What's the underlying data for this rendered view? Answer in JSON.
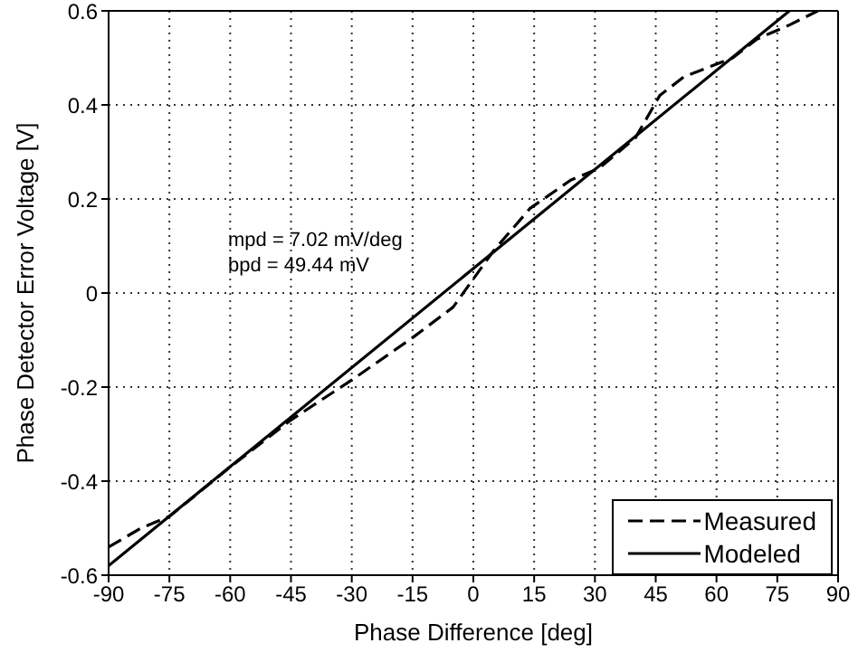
{
  "chart_data": {
    "type": "line",
    "xlabel": "Phase Difference [deg]",
    "ylabel": "Phase Detector Error Voltage [V]",
    "annotations": [
      "mpd = 7.02 mV/deg",
      "bpd = 49.44 mV"
    ],
    "xlim": [
      -90,
      90
    ],
    "xticks": [
      -90,
      -75,
      -60,
      -45,
      -30,
      -15,
      0,
      15,
      30,
      45,
      60,
      75,
      90
    ],
    "ylim": [
      -0.6,
      0.6
    ],
    "yticks": [
      -0.6,
      -0.4,
      -0.2,
      0,
      0.2,
      0.4,
      0.6
    ],
    "grid": true,
    "legend": "bottom right",
    "marker": "none",
    "series": [
      {
        "name": "Measured",
        "color": "#000000",
        "line_style": "dashed",
        "x": [
          -90,
          -82,
          -75,
          -60,
          -45,
          -30,
          -15,
          -5,
          0,
          5,
          14,
          24,
          31,
          40,
          46,
          52,
          58,
          64,
          70,
          78,
          85
        ],
        "values": [
          -0.54,
          -0.5,
          -0.475,
          -0.37,
          -0.27,
          -0.185,
          -0.095,
          -0.03,
          0.03,
          0.09,
          0.18,
          0.24,
          0.265,
          0.33,
          0.42,
          0.46,
          0.48,
          0.5,
          0.54,
          0.57,
          0.6
        ]
      },
      {
        "name": "Modeled",
        "color": "#000000",
        "line_style": "solid",
        "x": [
          -90,
          78
        ],
        "values": [
          -0.58,
          0.6
        ]
      }
    ]
  }
}
